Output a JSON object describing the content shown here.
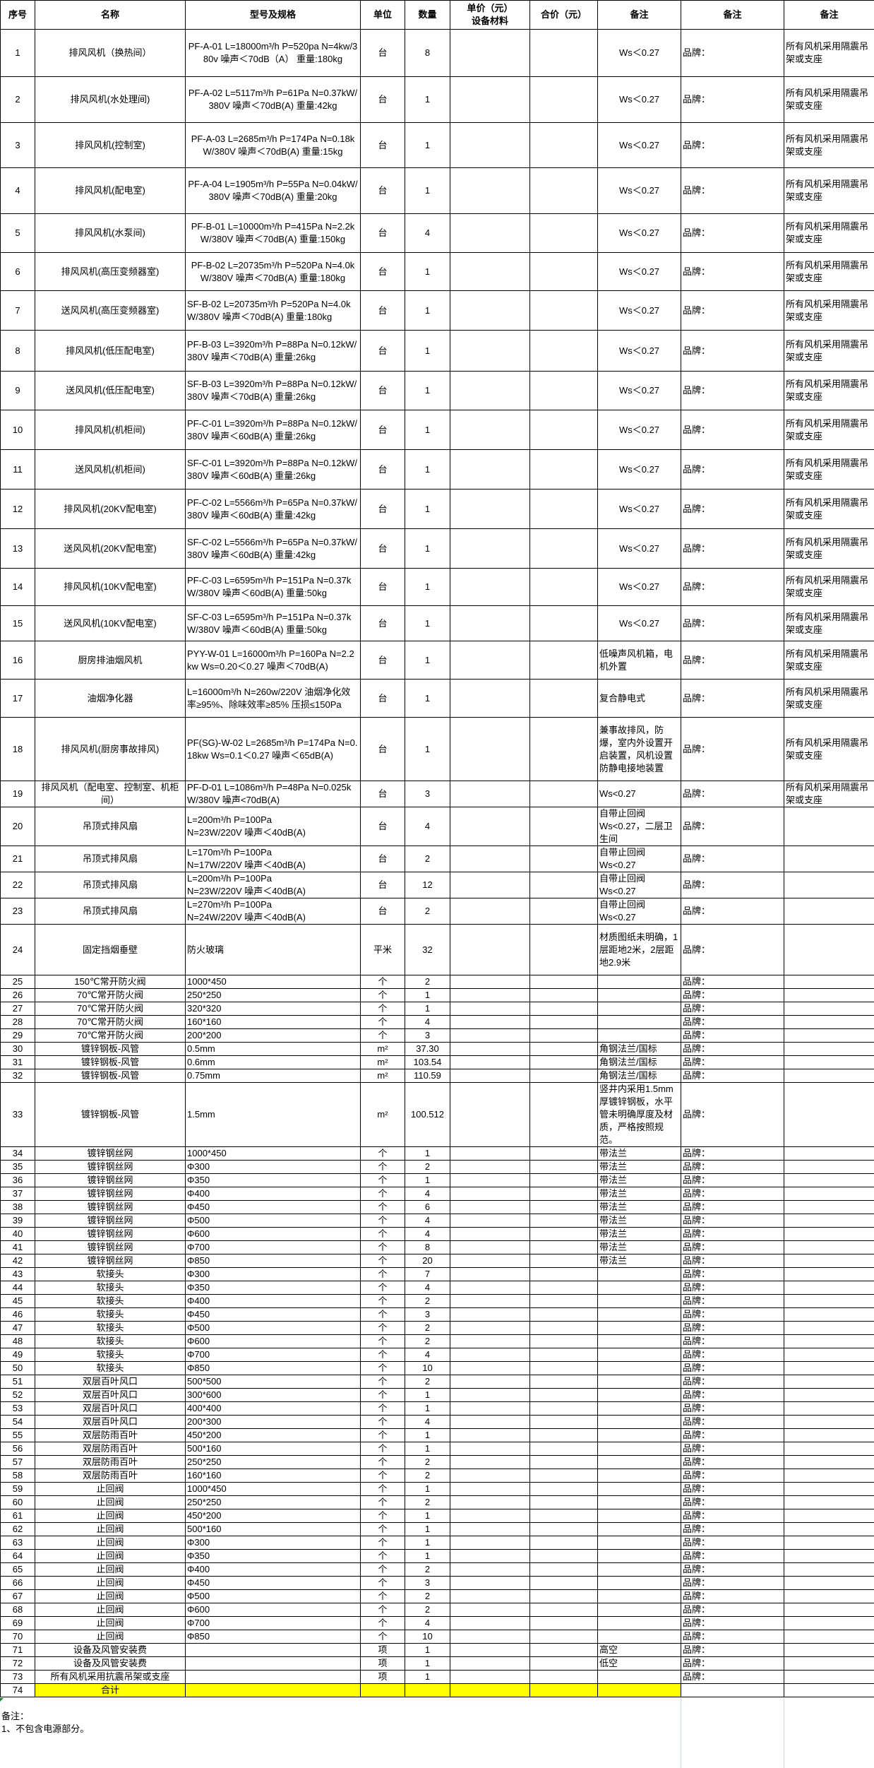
{
  "headers": [
    "序号",
    "名称",
    "型号及规格",
    "单位",
    "数量",
    "单价（元）\n设备材料",
    "合价（元）",
    "备注",
    "备注",
    "备注"
  ],
  "rows": [
    [
      "1",
      "排风风机（换热间）",
      "PF-A-01 L=18000m³/h P=520pa N=4kw/380v 噪声＜70dB（A） 重量:180kg",
      "台",
      "8",
      "",
      "",
      "Ws＜0.27",
      "品牌：",
      "所有风机采用隔震吊架或支座"
    ],
    [
      "2",
      "排风风机(水处理间)",
      "PF-A-02 L=5117m³/h P=61Pa N=0.37kW/380V 噪声＜70dB(A) 重量:42kg",
      "台",
      "1",
      "",
      "",
      "Ws＜0.27",
      "品牌：",
      "所有风机采用隔震吊架或支座"
    ],
    [
      "3",
      "排风风机(控制室)",
      "PF-A-03 L=2685m³/h P=174Pa N=0.18kW/380V 噪声＜70dB(A) 重量:15kg",
      "台",
      "1",
      "",
      "",
      "Ws＜0.27",
      "品牌：",
      "所有风机采用隔震吊架或支座"
    ],
    [
      "4",
      "排风风机(配电室)",
      "PF-A-04 L=1905m³/h P=55Pa N=0.04kW/380V 噪声＜70dB(A) 重量:20kg",
      "台",
      "1",
      "",
      "",
      "Ws＜0.27",
      "品牌：",
      "所有风机采用隔震吊架或支座"
    ],
    [
      "5",
      "排风风机(水泵间)",
      "PF-B-01 L=10000m³/h P=415Pa N=2.2kW/380V 噪声＜70dB(A) 重量:150kg",
      "台",
      "4",
      "",
      "",
      "Ws＜0.27",
      "品牌：",
      "所有风机采用隔震吊架或支座"
    ],
    [
      "6",
      "排风风机(高压变频器室)",
      "PF-B-02 L=20735m³/h P=520Pa N=4.0kW/380V 噪声＜70dB(A) 重量:180kg",
      "台",
      "1",
      "",
      "",
      "Ws＜0.27",
      "品牌：",
      "所有风机采用隔震吊架或支座"
    ],
    [
      "7",
      "送风风机(高压变频器室)",
      "SF-B-02 L=20735m³/h P=520Pa N=4.0kW/380V 噪声＜70dB(A) 重量:180kg",
      "台",
      "1",
      "",
      "",
      "Ws＜0.27",
      "品牌：",
      "所有风机采用隔震吊架或支座"
    ],
    [
      "8",
      "排风风机(低压配电室)",
      "PF-B-03 L=3920m³/h P=88Pa N=0.12kW/380V 噪声＜70dB(A) 重量:26kg",
      "台",
      "1",
      "",
      "",
      "Ws＜0.27",
      "品牌：",
      "所有风机采用隔震吊架或支座"
    ],
    [
      "9",
      "送风风机(低压配电室)",
      "SF-B-03 L=3920m³/h P=88Pa N=0.12kW/380V 噪声＜70dB(A) 重量:26kg",
      "台",
      "1",
      "",
      "",
      "Ws＜0.27",
      "品牌：",
      "所有风机采用隔震吊架或支座"
    ],
    [
      "10",
      "排风风机(机柜间)",
      "PF-C-01 L=3920m³/h P=88Pa N=0.12kW/380V 噪声＜60dB(A) 重量:26kg",
      "台",
      "1",
      "",
      "",
      "Ws＜0.27",
      "品牌：",
      "所有风机采用隔震吊架或支座"
    ],
    [
      "11",
      "送风风机(机柜间)",
      "SF-C-01 L=3920m³/h P=88Pa N=0.12kW/380V 噪声＜60dB(A) 重量:26kg",
      "台",
      "1",
      "",
      "",
      "Ws＜0.27",
      "品牌：",
      "所有风机采用隔震吊架或支座"
    ],
    [
      "12",
      "排风风机(20KV配电室)",
      "PF-C-02 L=5566m³/h P=65Pa N=0.37kW/380V 噪声＜60dB(A) 重量:42kg",
      "台",
      "1",
      "",
      "",
      "Ws＜0.27",
      "品牌：",
      "所有风机采用隔震吊架或支座"
    ],
    [
      "13",
      "送风风机(20KV配电室)",
      "SF-C-02 L=5566m³/h P=65Pa N=0.37kW/380V 噪声＜60dB(A) 重量:42kg",
      "台",
      "1",
      "",
      "",
      "Ws＜0.27",
      "品牌：",
      "所有风机采用隔震吊架或支座"
    ],
    [
      "14",
      "排风风机(10KV配电室)",
      "PF-C-03 L=6595m³/h P=151Pa N=0.37kW/380V 噪声＜60dB(A) 重量:50kg",
      "台",
      "1",
      "",
      "",
      "Ws＜0.27",
      "品牌：",
      "所有风机采用隔震吊架或支座"
    ],
    [
      "15",
      "送风风机(10KV配电室)",
      "SF-C-03 L=6595m³/h P=151Pa N=0.37kW/380V 噪声＜60dB(A) 重量:50kg",
      "台",
      "1",
      "",
      "",
      "Ws＜0.27",
      "品牌：",
      "所有风机采用隔震吊架或支座"
    ],
    [
      "16",
      "厨房排油烟风机",
      "PYY-W-01 L=16000m³/h P=160Pa N=2.2kw Ws=0.20＜0.27 噪声＜70dB(A)",
      "台",
      "1",
      "",
      "",
      "低噪声风机箱，电机外置",
      "品牌：",
      "所有风机采用隔震吊架或支座"
    ],
    [
      "17",
      "油烟净化器",
      "L=16000m³/h N=260w/220V 油烟净化效率≥95%、除味效率≥85% 压损≤150Pa",
      "台",
      "1",
      "",
      "",
      "复合静电式",
      "品牌：",
      "所有风机采用隔震吊架或支座"
    ],
    [
      "18",
      "排风风机(厨房事故排风)",
      "PF(SG)-W-02 L=2685m³/h P=174Pa N=0.18kw Ws=0.1＜0.27 噪声＜65dB(A)",
      "台",
      "1",
      "",
      "",
      "兼事故排风，防爆，室内外设置开启装置，风机设置防静电接地装置",
      "品牌：",
      "所有风机采用隔震吊架或支座"
    ],
    [
      "19",
      "排风风机（配电室、控制室、机柜间）",
      "PF-D-01 L=1086m³/h P=48Pa N=0.025kW/380V  噪声<70dB(A)",
      "台",
      "3",
      "",
      "",
      "Ws<0.27",
      "品牌：",
      "所有风机采用隔震吊架或支座"
    ],
    [
      "20",
      "吊顶式排风扇",
      "L=200m³/h P=100Pa\nN=23W/220V 噪声＜40dB(A)",
      "台",
      "4",
      "",
      "",
      "自带止回阀\nWs<0.27，二层卫生间",
      "品牌：",
      ""
    ],
    [
      "21",
      "吊顶式排风扇",
      "L=170m³/h P=100Pa\nN=17W/220V 噪声＜40dB(A)",
      "台",
      "2",
      "",
      "",
      "自带止回阀\nWs<0.27",
      "品牌：",
      ""
    ],
    [
      "22",
      "吊顶式排风扇",
      "L=200m³/h P=100Pa\nN=23W/220V 噪声＜40dB(A)",
      "台",
      "12",
      "",
      "",
      "自带止回阀\nWs<0.27",
      "品牌：",
      ""
    ],
    [
      "23",
      "吊顶式排风扇",
      "L=270m³/h P=100Pa\nN=24W/220V 噪声＜40dB(A)",
      "台",
      "2",
      "",
      "",
      "自带止回阀\nWs<0.27",
      "品牌：",
      ""
    ],
    [
      "24",
      "固定挡烟垂壁",
      "防火玻璃",
      "平米",
      "32",
      "",
      "",
      "材质图纸未明确，1层距地2米，2层距地2.9米",
      "品牌：",
      ""
    ],
    [
      "25",
      "150℃常开防火阀",
      "1000*450",
      "个",
      "2",
      "",
      "",
      "",
      "品牌：",
      ""
    ],
    [
      "26",
      "70℃常开防火阀",
      "250*250",
      "个",
      "1",
      "",
      "",
      "",
      "品牌：",
      ""
    ],
    [
      "27",
      "70℃常开防火阀",
      "320*320",
      "个",
      "1",
      "",
      "",
      "",
      "品牌：",
      ""
    ],
    [
      "28",
      "70℃常开防火阀",
      "160*160",
      "个",
      "4",
      "",
      "",
      "",
      "品牌：",
      ""
    ],
    [
      "29",
      "70℃常开防火阀",
      "200*200",
      "个",
      "3",
      "",
      "",
      "",
      "品牌：",
      ""
    ],
    [
      "30",
      "镀锌钢板-风管",
      "0.5mm",
      "m²",
      "37.30",
      "",
      "",
      "角钢法兰/国标",
      "品牌：",
      ""
    ],
    [
      "31",
      "镀锌钢板-风管",
      "0.6mm",
      "m²",
      "103.54",
      "",
      "",
      "角钢法兰/国标",
      "品牌：",
      ""
    ],
    [
      "32",
      "镀锌钢板-风管",
      "0.75mm",
      "m²",
      "110.59",
      "",
      "",
      "角钢法兰/国标",
      "品牌：",
      ""
    ],
    [
      "33",
      "镀锌钢板-风管",
      "1.5mm",
      "m²",
      "100.512",
      "",
      "",
      "竖井内采用1.5mm厚镀锌钢板，水平管未明确厚度及材质，严格按照规范。",
      "品牌：",
      ""
    ],
    [
      "34",
      "镀锌钢丝网",
      "1000*450",
      "个",
      "1",
      "",
      "",
      "带法兰",
      "品牌：",
      ""
    ],
    [
      "35",
      "镀锌钢丝网",
      "Φ300",
      "个",
      "2",
      "",
      "",
      "带法兰",
      "品牌：",
      ""
    ],
    [
      "36",
      "镀锌钢丝网",
      "Φ350",
      "个",
      "1",
      "",
      "",
      "带法兰",
      "品牌：",
      ""
    ],
    [
      "37",
      "镀锌钢丝网",
      "Φ400",
      "个",
      "4",
      "",
      "",
      "带法兰",
      "品牌：",
      ""
    ],
    [
      "38",
      "镀锌钢丝网",
      "Φ450",
      "个",
      "6",
      "",
      "",
      "带法兰",
      "品牌：",
      ""
    ],
    [
      "39",
      "镀锌钢丝网",
      "Φ500",
      "个",
      "4",
      "",
      "",
      "带法兰",
      "品牌：",
      ""
    ],
    [
      "40",
      "镀锌钢丝网",
      "Φ600",
      "个",
      "4",
      "",
      "",
      "带法兰",
      "品牌：",
      ""
    ],
    [
      "41",
      "镀锌钢丝网",
      "Φ700",
      "个",
      "8",
      "",
      "",
      "带法兰",
      "品牌：",
      ""
    ],
    [
      "42",
      "镀锌钢丝网",
      "Φ850",
      "个",
      "20",
      "",
      "",
      "带法兰",
      "品牌：",
      ""
    ],
    [
      "43",
      "软接头",
      "Φ300",
      "个",
      "7",
      "",
      "",
      "",
      "品牌：",
      ""
    ],
    [
      "44",
      "软接头",
      "Φ350",
      "个",
      "4",
      "",
      "",
      "",
      "品牌：",
      ""
    ],
    [
      "45",
      "软接头",
      "Φ400",
      "个",
      "2",
      "",
      "",
      "",
      "品牌：",
      ""
    ],
    [
      "46",
      "软接头",
      "Φ450",
      "个",
      "3",
      "",
      "",
      "",
      "品牌：",
      ""
    ],
    [
      "47",
      "软接头",
      "Φ500",
      "个",
      "2",
      "",
      "",
      "",
      "品牌：",
      ""
    ],
    [
      "48",
      "软接头",
      "Φ600",
      "个",
      "2",
      "",
      "",
      "",
      "品牌：",
      ""
    ],
    [
      "49",
      "软接头",
      "Φ700",
      "个",
      "4",
      "",
      "",
      "",
      "品牌：",
      ""
    ],
    [
      "50",
      "软接头",
      "Φ850",
      "个",
      "10",
      "",
      "",
      "",
      "品牌：",
      ""
    ],
    [
      "51",
      "双层百叶风口",
      "500*500",
      "个",
      "2",
      "",
      "",
      "",
      "品牌：",
      ""
    ],
    [
      "52",
      "双层百叶风口",
      "300*600",
      "个",
      "1",
      "",
      "",
      "",
      "品牌：",
      ""
    ],
    [
      "53",
      "双层百叶风口",
      "400*400",
      "个",
      "1",
      "",
      "",
      "",
      "品牌：",
      ""
    ],
    [
      "54",
      "双层百叶风口",
      "200*300",
      "个",
      "4",
      "",
      "",
      "",
      "品牌：",
      ""
    ],
    [
      "55",
      "双层防雨百叶",
      "450*200",
      "个",
      "1",
      "",
      "",
      "",
      "品牌：",
      ""
    ],
    [
      "56",
      "双层防雨百叶",
      "500*160",
      "个",
      "1",
      "",
      "",
      "",
      "品牌：",
      ""
    ],
    [
      "57",
      "双层防雨百叶",
      "250*250",
      "个",
      "2",
      "",
      "",
      "",
      "品牌：",
      ""
    ],
    [
      "58",
      "双层防雨百叶",
      "160*160",
      "个",
      "2",
      "",
      "",
      "",
      "品牌：",
      ""
    ],
    [
      "59",
      "止回阀",
      "1000*450",
      "个",
      "1",
      "",
      "",
      "",
      "品牌：",
      ""
    ],
    [
      "60",
      "止回阀",
      "250*250",
      "个",
      "2",
      "",
      "",
      "",
      "品牌：",
      ""
    ],
    [
      "61",
      "止回阀",
      "450*200",
      "个",
      "1",
      "",
      "",
      "",
      "品牌：",
      ""
    ],
    [
      "62",
      "止回阀",
      "500*160",
      "个",
      "1",
      "",
      "",
      "",
      "品牌：",
      ""
    ],
    [
      "63",
      "止回阀",
      "Φ300",
      "个",
      "1",
      "",
      "",
      "",
      "品牌：",
      ""
    ],
    [
      "64",
      "止回阀",
      "Φ350",
      "个",
      "1",
      "",
      "",
      "",
      "品牌：",
      ""
    ],
    [
      "65",
      "止回阀",
      "Φ400",
      "个",
      "2",
      "",
      "",
      "",
      "品牌：",
      ""
    ],
    [
      "66",
      "止回阀",
      "Φ450",
      "个",
      "3",
      "",
      "",
      "",
      "品牌：",
      ""
    ],
    [
      "67",
      "止回阀",
      "Φ500",
      "个",
      "2",
      "",
      "",
      "",
      "品牌：",
      ""
    ],
    [
      "68",
      "止回阀",
      "Φ600",
      "个",
      "2",
      "",
      "",
      "",
      "品牌：",
      ""
    ],
    [
      "69",
      "止回阀",
      "Φ700",
      "个",
      "4",
      "",
      "",
      "",
      "品牌：",
      ""
    ],
    [
      "70",
      "止回阀",
      "Φ850",
      "个",
      "10",
      "",
      "",
      "",
      "品牌：",
      ""
    ],
    [
      "71",
      "设备及风管安装费",
      "",
      "项",
      "1",
      "",
      "",
      "高空",
      "品牌：",
      ""
    ],
    [
      "72",
      "设备及风管安装费",
      "",
      "项",
      "1",
      "",
      "",
      "低空",
      "品牌：",
      ""
    ],
    [
      "73",
      "所有风机采用抗震吊架或支座",
      "",
      "项",
      "1",
      "",
      "",
      "",
      "品牌：",
      ""
    ],
    [
      "74",
      "合计",
      "",
      "",
      "",
      "",
      "",
      "",
      "",
      ""
    ]
  ],
  "highlight_color": "#ffff00",
  "notes": {
    "title": "备注：",
    "items": [
      "1、不包含电源部分。"
    ]
  }
}
